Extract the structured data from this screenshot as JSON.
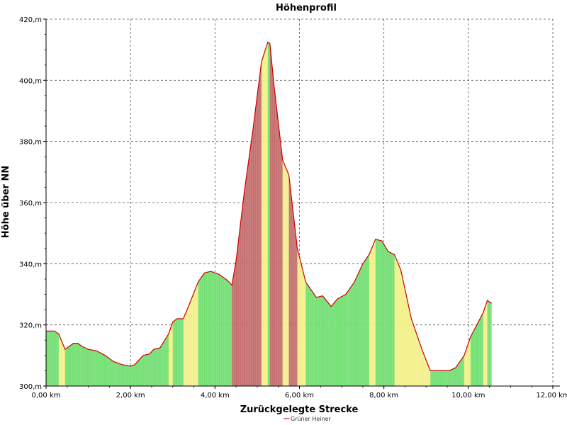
{
  "chart_data": {
    "type": "area",
    "title": "Höhenprofil",
    "xlabel": "Zurückgelegte Strecke",
    "ylabel": "Höhe über NN",
    "xlim": [
      0,
      12
    ],
    "ylim": [
      300,
      420
    ],
    "x_ticks": [
      0,
      2,
      4,
      6,
      8,
      10,
      12
    ],
    "x_tick_labels": [
      "0,00 km",
      "2,00 km",
      "4,00 km",
      "6,00 km",
      "8,00 km",
      "10,00 km",
      "12,00 km"
    ],
    "y_ticks": [
      300,
      320,
      340,
      360,
      380,
      400,
      420
    ],
    "y_tick_labels": [
      "300,m",
      "320,m",
      "340,m",
      "360,m",
      "380,m",
      "400,m",
      "420,m"
    ],
    "grid": true,
    "legend_position": "bottom",
    "series": [
      {
        "name": "Grüner Heiner",
        "line_color": "#cc0000",
        "x": [
          0.0,
          0.2,
          0.3,
          0.45,
          0.55,
          0.65,
          0.75,
          0.85,
          1.0,
          1.2,
          1.4,
          1.6,
          1.8,
          2.0,
          2.1,
          2.3,
          2.45,
          2.55,
          2.7,
          2.9,
          3.0,
          3.1,
          3.25,
          3.4,
          3.6,
          3.75,
          3.9,
          4.1,
          4.3,
          4.4,
          4.5,
          4.7,
          4.9,
          5.1,
          5.25,
          5.3,
          5.4,
          5.6,
          5.75,
          5.95,
          6.15,
          6.4,
          6.55,
          6.75,
          6.9,
          7.1,
          7.3,
          7.5,
          7.65,
          7.8,
          7.95,
          8.1,
          8.25,
          8.4,
          8.65,
          8.9,
          9.1,
          9.3,
          9.55,
          9.7,
          9.9,
          10.05,
          10.2,
          10.35,
          10.45,
          10.55
        ],
        "y": [
          318,
          318,
          317,
          312,
          313,
          314,
          314,
          313,
          312,
          311.5,
          310,
          308,
          307,
          306.5,
          307,
          310,
          310.5,
          312,
          312.5,
          317,
          321,
          322,
          322,
          327,
          334,
          337,
          337.5,
          336.5,
          334.5,
          333,
          341,
          364,
          384,
          406,
          412.5,
          412,
          398,
          374,
          369,
          345,
          334,
          329,
          329.5,
          326,
          328.5,
          330,
          334,
          340,
          343,
          348,
          347.5,
          344,
          343,
          338,
          322,
          312,
          305,
          305,
          305,
          306,
          310,
          316,
          320,
          324,
          328,
          327
        ]
      }
    ],
    "slope_colors": {
      "flat": "#66dd66",
      "moderate": "#f2ee80",
      "steep": "#c06060"
    }
  }
}
